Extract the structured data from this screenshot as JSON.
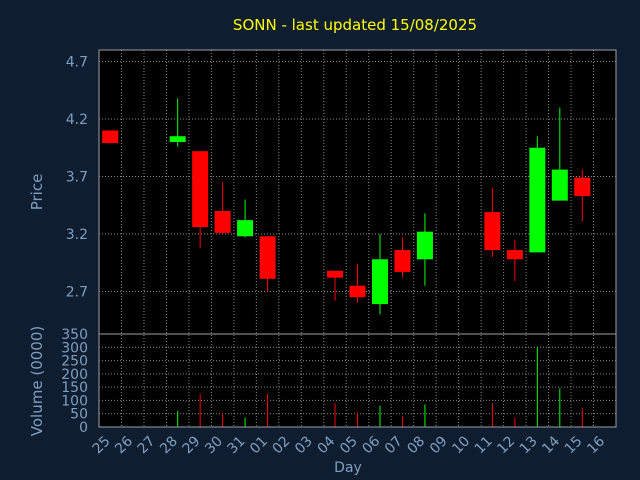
{
  "colors": {
    "background": "#0e1e30",
    "plot_background": "#000000",
    "grid": "#8a8a8a",
    "frame": "#a0a0a0",
    "title": "#ffff00",
    "text": "#7f9fc0",
    "up": "#00ff00",
    "down": "#ff0000"
  },
  "chart_data": {
    "type": "candlestick",
    "title": "SONN - last updated 15/08/2025",
    "xlabel": "Day",
    "ylabel": "Price",
    "volume_ylabel": "Volume (0000)",
    "x_ticks": [
      "25",
      "26",
      "27",
      "28",
      "29",
      "30",
      "31",
      "01",
      "02",
      "03",
      "04",
      "05",
      "06",
      "07",
      "08",
      "09",
      "10",
      "11",
      "12",
      "13",
      "14",
      "15",
      "16"
    ],
    "price_ticks": [
      "4.7",
      "4.2",
      "3.7",
      "3.2",
      "2.7"
    ],
    "volume_ticks": [
      "350",
      "300",
      "250",
      "200",
      "150",
      "100",
      "50",
      "0"
    ],
    "ylim": [
      2.33,
      4.8
    ],
    "volume_ylim": [
      0,
      350
    ],
    "grid": true,
    "candles": [
      {
        "day": "25",
        "open": 4.1,
        "close": 3.99,
        "high": 4.1,
        "low": 3.99,
        "volume": 0
      },
      {
        "day": "28",
        "open": 4.0,
        "close": 4.05,
        "high": 4.38,
        "low": 3.96,
        "volume": 60
      },
      {
        "day": "29",
        "open": 3.92,
        "close": 3.26,
        "high": 3.92,
        "low": 3.08,
        "volume": 125
      },
      {
        "day": "30",
        "open": 3.4,
        "close": 3.21,
        "high": 3.65,
        "low": 3.2,
        "volume": 50
      },
      {
        "day": "31",
        "open": 3.18,
        "close": 3.32,
        "high": 3.5,
        "low": 3.17,
        "volume": 35
      },
      {
        "day": "01",
        "open": 3.18,
        "close": 2.81,
        "high": 3.18,
        "low": 2.7,
        "volume": 125
      },
      {
        "day": "04",
        "open": 2.88,
        "close": 2.82,
        "high": 2.88,
        "low": 2.62,
        "volume": 90
      },
      {
        "day": "05",
        "open": 2.75,
        "close": 2.65,
        "high": 2.94,
        "low": 2.6,
        "volume": 55
      },
      {
        "day": "06",
        "open": 2.59,
        "close": 2.98,
        "high": 3.2,
        "low": 2.5,
        "volume": 80
      },
      {
        "day": "07",
        "open": 3.06,
        "close": 2.87,
        "high": 3.17,
        "low": 2.82,
        "volume": 40
      },
      {
        "day": "08",
        "open": 2.98,
        "close": 3.22,
        "high": 3.38,
        "low": 2.75,
        "volume": 85
      },
      {
        "day": "11",
        "open": 3.39,
        "close": 3.06,
        "high": 3.6,
        "low": 3.0,
        "volume": 90
      },
      {
        "day": "12",
        "open": 3.06,
        "close": 2.98,
        "high": 3.15,
        "low": 2.79,
        "volume": 35
      },
      {
        "day": "13",
        "open": 3.04,
        "close": 3.95,
        "high": 4.05,
        "low": 3.04,
        "volume": 300
      },
      {
        "day": "14",
        "open": 3.49,
        "close": 3.76,
        "high": 4.3,
        "low": 3.49,
        "volume": 145
      },
      {
        "day": "15",
        "open": 3.69,
        "close": 3.53,
        "high": 3.76,
        "low": 3.31,
        "volume": 70
      }
    ]
  }
}
